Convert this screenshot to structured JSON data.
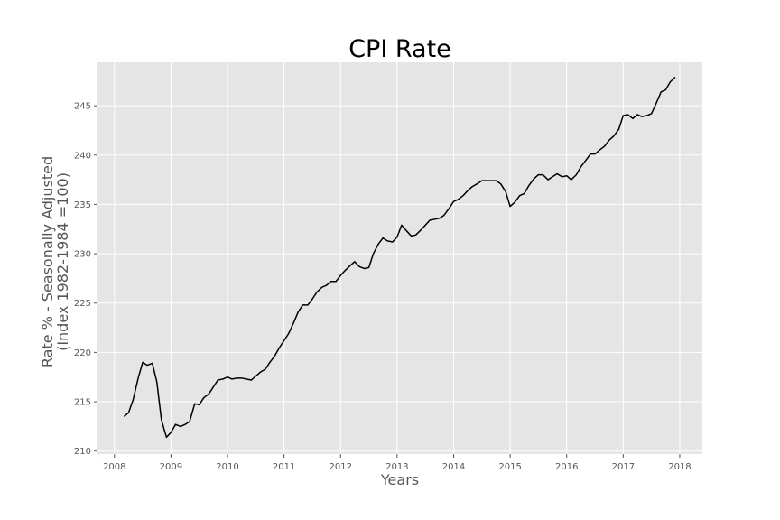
{
  "chart_data": {
    "type": "line",
    "title": "CPI Rate",
    "xlabel": "Years",
    "ylabel_lines": [
      "Rate % - Seasonally Adjusted",
      "(Index 1982-1984 =100)"
    ],
    "xlim": [
      2007.7,
      2018.4
    ],
    "ylim": [
      209.7,
      249.4
    ],
    "xticks": [
      2008,
      2009,
      2010,
      2011,
      2012,
      2013,
      2014,
      2015,
      2016,
      2017,
      2018
    ],
    "yticks": [
      210,
      215,
      220,
      225,
      230,
      235,
      240,
      245
    ],
    "grid": true,
    "style": {
      "background": "#e5e5e5",
      "grid_color": "#ffffff",
      "line_color": "#000000"
    },
    "series": [
      {
        "x": [
          2008.17,
          2008.25,
          2008.33,
          2008.42,
          2008.5,
          2008.58,
          2008.67,
          2008.75,
          2008.83,
          2008.92,
          2009.0,
          2009.08,
          2009.17,
          2009.25,
          2009.33,
          2009.42,
          2009.5,
          2009.58,
          2009.67,
          2009.75,
          2009.83,
          2009.92,
          2010.0,
          2010.08,
          2010.17,
          2010.25,
          2010.33,
          2010.42,
          2010.5,
          2010.58,
          2010.67,
          2010.75,
          2010.83,
          2010.92,
          2011.0,
          2011.08,
          2011.17,
          2011.25,
          2011.33,
          2011.42,
          2011.5,
          2011.58,
          2011.67,
          2011.75,
          2011.83,
          2011.92,
          2012.0,
          2012.08,
          2012.17,
          2012.25,
          2012.33,
          2012.42,
          2012.5,
          2012.58,
          2012.67,
          2012.75,
          2012.83,
          2012.92,
          2013.0,
          2013.08,
          2013.17,
          2013.25,
          2013.33,
          2013.42,
          2013.5,
          2013.58,
          2013.67,
          2013.75,
          2013.83,
          2013.92,
          2014.0,
          2014.08,
          2014.17,
          2014.25,
          2014.33,
          2014.42,
          2014.5,
          2014.58,
          2014.67,
          2014.75,
          2014.83,
          2014.92,
          2015.0,
          2015.08,
          2015.17,
          2015.25,
          2015.33,
          2015.42,
          2015.5,
          2015.58,
          2015.67,
          2015.75,
          2015.83,
          2015.92,
          2016.0,
          2016.08,
          2016.17,
          2016.25,
          2016.33,
          2016.42,
          2016.5,
          2016.58,
          2016.67,
          2016.75,
          2016.83,
          2016.92,
          2017.0,
          2017.08,
          2017.17,
          2017.25,
          2017.33,
          2017.42,
          2017.5,
          2017.58,
          2017.67,
          2017.75,
          2017.83,
          2017.92
        ],
        "values": [
          213.5,
          213.9,
          215.2,
          217.4,
          219.0,
          218.7,
          218.9,
          217.0,
          213.2,
          211.4,
          211.9,
          212.7,
          212.5,
          212.7,
          213.0,
          214.8,
          214.7,
          215.4,
          215.8,
          216.5,
          217.2,
          217.3,
          217.5,
          217.3,
          217.4,
          217.4,
          217.3,
          217.2,
          217.6,
          218.0,
          218.3,
          219.0,
          219.6,
          220.5,
          221.2,
          221.9,
          223.0,
          224.1,
          224.8,
          224.8,
          225.4,
          226.1,
          226.6,
          226.8,
          227.2,
          227.2,
          227.8,
          228.3,
          228.8,
          229.2,
          228.7,
          228.5,
          228.6,
          230.0,
          231.0,
          231.6,
          231.3,
          231.2,
          231.7,
          232.9,
          232.3,
          231.8,
          231.9,
          232.4,
          232.9,
          233.4,
          233.5,
          233.6,
          233.9,
          234.6,
          235.3,
          235.5,
          235.9,
          236.4,
          236.8,
          237.1,
          237.4,
          237.4,
          237.4,
          237.4,
          237.1,
          236.3,
          234.8,
          235.2,
          235.9,
          236.1,
          236.9,
          237.6,
          238.0,
          238.0,
          237.5,
          237.8,
          238.1,
          237.8,
          237.9,
          237.5,
          238.0,
          238.8,
          239.4,
          240.1,
          240.1,
          240.5,
          240.9,
          241.5,
          241.9,
          242.6,
          244.0,
          244.1,
          243.7,
          244.1,
          243.9,
          244.0,
          244.2,
          245.2,
          246.4,
          246.6,
          247.4,
          247.9
        ]
      }
    ]
  }
}
